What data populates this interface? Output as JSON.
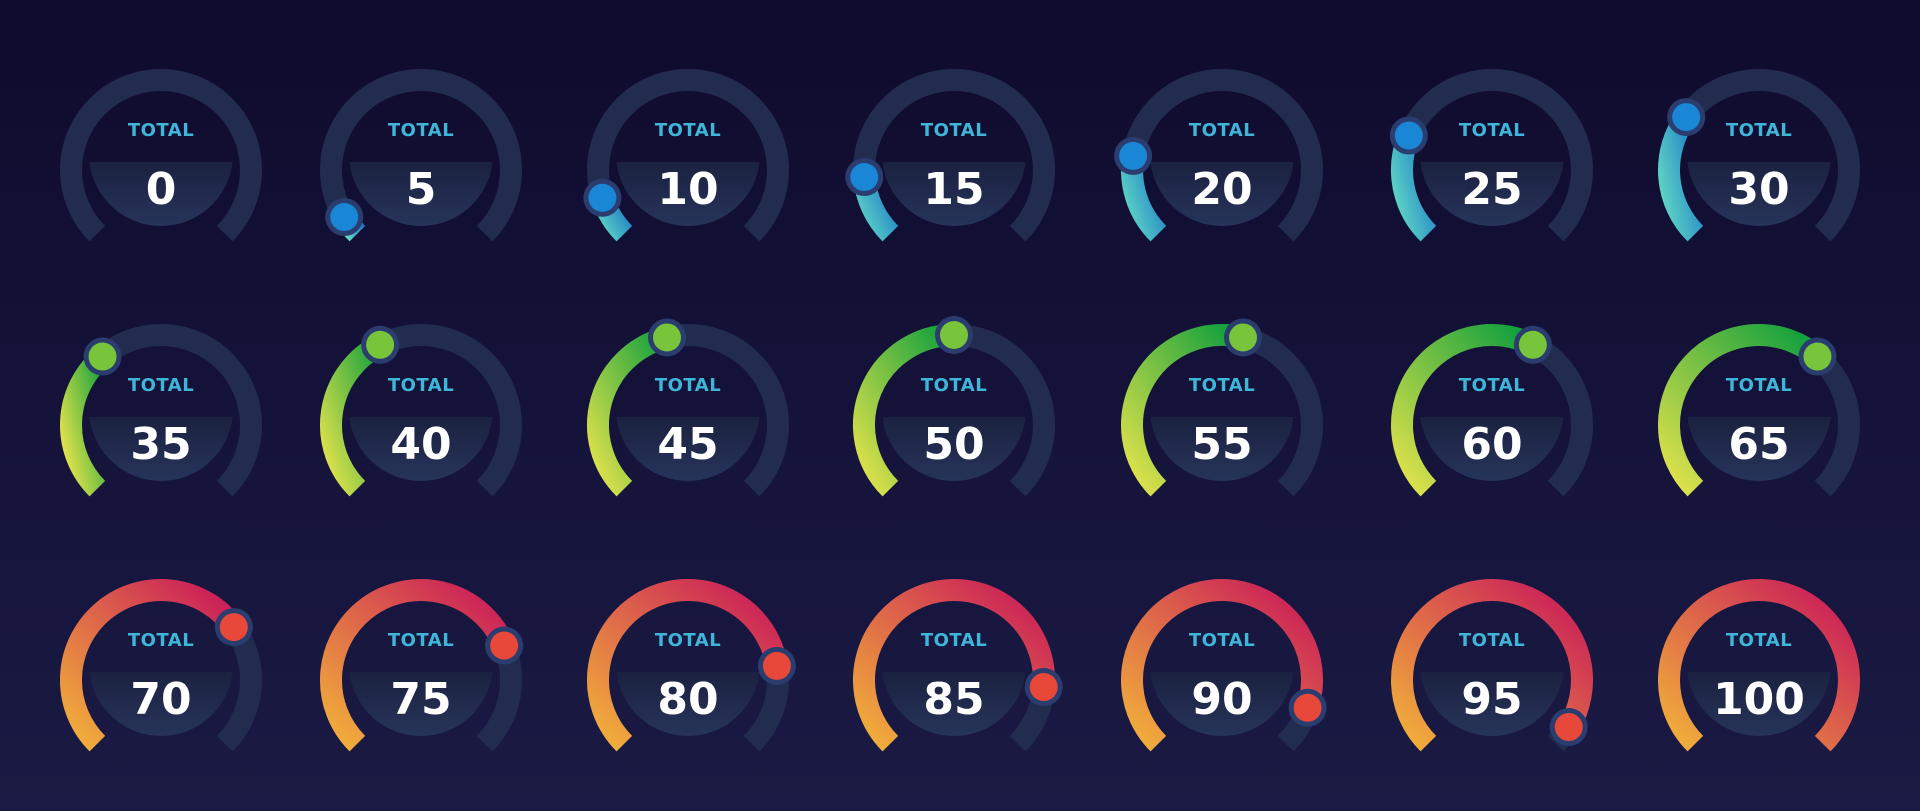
{
  "colors": {
    "track": "#222c4e",
    "inner_top": "#1b2140",
    "inner_bottom": "#26345a",
    "label": "#3fb6d8",
    "value": "#ffffff",
    "knob_ring": "#2a3d6e",
    "blue_start": "#5fd6c4",
    "blue_end": "#1876c8",
    "blue_knob": "#1a86d6",
    "green_start": "#e6e44c",
    "green_end": "#0a9d3c",
    "green_knob": "#78c43a",
    "red_start": "#f2b23a",
    "red_end": "#c8165a",
    "red_knob": "#e8483a"
  },
  "gauges": [
    {
      "label": "TOTAL",
      "value": "0"
    },
    {
      "label": "TOTAL",
      "value": "5"
    },
    {
      "label": "TOTAL",
      "value": "10"
    },
    {
      "label": "TOTAL",
      "value": "15"
    },
    {
      "label": "TOTAL",
      "value": "20"
    },
    {
      "label": "TOTAL",
      "value": "25"
    },
    {
      "label": "TOTAL",
      "value": "30"
    },
    {
      "label": "TOTAL",
      "value": "35"
    },
    {
      "label": "TOTAL",
      "value": "40"
    },
    {
      "label": "TOTAL",
      "value": "45"
    },
    {
      "label": "TOTAL",
      "value": "50"
    },
    {
      "label": "TOTAL",
      "value": "55"
    },
    {
      "label": "TOTAL",
      "value": "60"
    },
    {
      "label": "TOTAL",
      "value": "65"
    },
    {
      "label": "TOTAL",
      "value": "70"
    },
    {
      "label": "TOTAL",
      "value": "75"
    },
    {
      "label": "TOTAL",
      "value": "80"
    },
    {
      "label": "TOTAL",
      "value": "85"
    },
    {
      "label": "TOTAL",
      "value": "90"
    },
    {
      "label": "TOTAL",
      "value": "95"
    },
    {
      "label": "TOTAL",
      "value": "100"
    }
  ]
}
